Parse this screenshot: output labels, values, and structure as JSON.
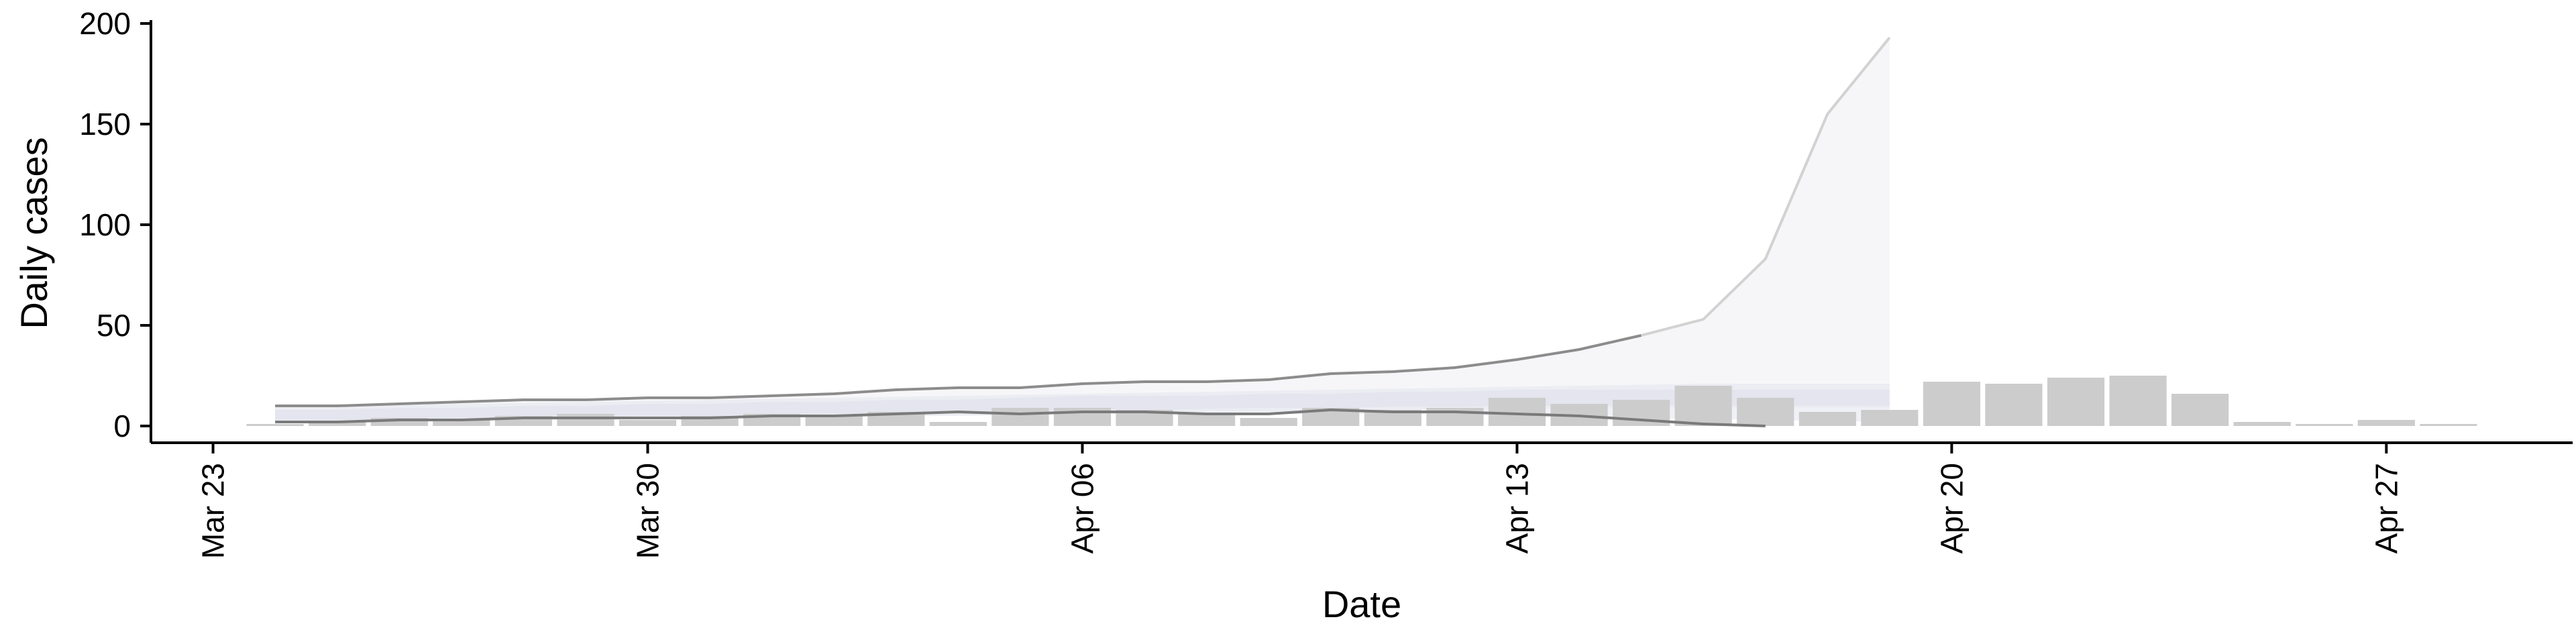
{
  "chart_data": {
    "type": "bar",
    "title": "",
    "xlabel": "Date",
    "ylabel": "Daily cases",
    "ylim": [
      0,
      200
    ],
    "yticks": [
      0,
      50,
      100,
      150,
      200
    ],
    "xlim": [
      "2020-03-22",
      "2020-04-30"
    ],
    "xticks": [
      {
        "date": "2020-03-23",
        "label": "Mar 23"
      },
      {
        "date": "2020-03-30",
        "label": "Mar 30"
      },
      {
        "date": "2020-04-06",
        "label": "Apr 06"
      },
      {
        "date": "2020-04-13",
        "label": "Apr 13"
      },
      {
        "date": "2020-04-20",
        "label": "Apr 20"
      },
      {
        "date": "2020-04-27",
        "label": "Apr 27"
      }
    ],
    "grid": false,
    "legend": "none",
    "bars": {
      "name": "",
      "color": "#cccccc",
      "x": [
        "2020-03-24",
        "2020-03-25",
        "2020-03-26",
        "2020-03-27",
        "2020-03-28",
        "2020-03-29",
        "2020-03-30",
        "2020-03-31",
        "2020-04-01",
        "2020-04-02",
        "2020-04-03",
        "2020-04-04",
        "2020-04-05",
        "2020-04-06",
        "2020-04-07",
        "2020-04-08",
        "2020-04-09",
        "2020-04-10",
        "2020-04-11",
        "2020-04-12",
        "2020-04-13",
        "2020-04-14",
        "2020-04-15",
        "2020-04-16",
        "2020-04-17",
        "2020-04-18",
        "2020-04-19",
        "2020-04-20",
        "2020-04-21",
        "2020-04-22",
        "2020-04-23",
        "2020-04-24",
        "2020-04-25",
        "2020-04-26",
        "2020-04-27",
        "2020-04-28"
      ],
      "values": [
        1,
        2,
        4,
        3,
        5,
        6,
        3,
        5,
        6,
        5,
        7,
        2,
        9,
        9,
        8,
        6,
        4,
        9,
        8,
        9,
        14,
        11,
        13,
        20,
        14,
        7,
        8,
        22,
        21,
        24,
        25,
        16,
        2,
        1,
        3,
        1
      ]
    },
    "shaded_series": [
      {
        "name": "",
        "color": "#b8bfd9",
        "opacity": 0.28,
        "x": [
          "2020-03-24",
          "2020-03-25",
          "2020-03-26",
          "2020-03-27",
          "2020-03-28",
          "2020-03-29",
          "2020-03-30",
          "2020-03-31",
          "2020-04-01",
          "2020-04-02",
          "2020-04-03",
          "2020-04-04",
          "2020-04-05",
          "2020-04-06",
          "2020-04-07",
          "2020-04-08",
          "2020-04-09",
          "2020-04-10",
          "2020-04-11",
          "2020-04-12",
          "2020-04-13",
          "2020-04-14",
          "2020-04-15",
          "2020-04-16",
          "2020-04-17",
          "2020-04-18",
          "2020-04-19"
        ],
        "lower": [
          3,
          3,
          3.5,
          4,
          4,
          4.5,
          5,
          5,
          5.5,
          6,
          6.5,
          7,
          7.5,
          8,
          8,
          8.5,
          9,
          9,
          9.5,
          9.5,
          10,
          10,
          10,
          10,
          10,
          10,
          10
        ],
        "upper": [
          8,
          8,
          9,
          9,
          10,
          10,
          11,
          11,
          12,
          12,
          13,
          13,
          14,
          15,
          15,
          15,
          16,
          16,
          17,
          17,
          18,
          18,
          18,
          18,
          18,
          18,
          18
        ]
      },
      {
        "name": "",
        "color": "#d4d8e8",
        "opacity": 0.35,
        "x": [
          "2020-03-24",
          "2020-03-25",
          "2020-03-26",
          "2020-03-27",
          "2020-03-28",
          "2020-03-29",
          "2020-03-30",
          "2020-03-31",
          "2020-04-01",
          "2020-04-02",
          "2020-04-03",
          "2020-04-04",
          "2020-04-05",
          "2020-04-06",
          "2020-04-07",
          "2020-04-08",
          "2020-04-09",
          "2020-04-10",
          "2020-04-11",
          "2020-04-12",
          "2020-04-13",
          "2020-04-14",
          "2020-04-15",
          "2020-04-16",
          "2020-04-17",
          "2020-04-18",
          "2020-04-19"
        ],
        "lower": [
          2,
          2,
          2.5,
          3,
          3,
          3,
          3.5,
          4,
          4,
          4.5,
          5,
          5,
          5.5,
          6,
          6,
          6,
          6,
          6,
          6,
          5.5,
          5,
          4.5,
          4,
          3.5,
          3,
          2.5,
          2
        ],
        "upper": [
          10,
          10,
          10.5,
          11,
          11.5,
          12,
          12.5,
          13,
          13.5,
          14,
          14.5,
          15,
          15.5,
          16,
          16.5,
          17,
          17.5,
          18,
          18.5,
          19,
          19.5,
          20,
          20.5,
          21,
          21,
          21,
          21
        ]
      },
      {
        "name": "",
        "color": "#e6e6ea",
        "opacity": 0.35,
        "x": [
          "2020-03-24",
          "2020-03-25",
          "2020-03-26",
          "2020-03-27",
          "2020-03-28",
          "2020-03-29",
          "2020-03-30",
          "2020-03-31",
          "2020-04-01",
          "2020-04-02",
          "2020-04-03",
          "2020-04-04",
          "2020-04-05",
          "2020-04-06",
          "2020-04-07",
          "2020-04-08",
          "2020-04-09",
          "2020-04-10",
          "2020-04-11",
          "2020-04-12",
          "2020-04-13",
          "2020-04-14",
          "2020-04-15",
          "2020-04-16",
          "2020-04-17",
          "2020-04-18",
          "2020-04-19"
        ],
        "lower": [
          2,
          2,
          2.5,
          3,
          3,
          3.5,
          4,
          4,
          4.5,
          5,
          5,
          5.5,
          6,
          6,
          6.5,
          7,
          7,
          7.5,
          8,
          8,
          8.5,
          9,
          9,
          9,
          9,
          9,
          9
        ],
        "upper": [
          10,
          10,
          11,
          12,
          13,
          13,
          14,
          14,
          15,
          16,
          18,
          19,
          19,
          21,
          22,
          22,
          23,
          26,
          27,
          29,
          33,
          38,
          45,
          53,
          83,
          155,
          193
        ]
      }
    ],
    "lines": [
      {
        "name": "",
        "color": "#8c8c8c",
        "x": [
          "2020-03-24",
          "2020-03-25",
          "2020-03-26",
          "2020-03-27",
          "2020-03-28",
          "2020-03-29",
          "2020-03-30",
          "2020-03-31",
          "2020-04-01",
          "2020-04-02",
          "2020-04-03",
          "2020-04-04",
          "2020-04-05",
          "2020-04-06",
          "2020-04-07",
          "2020-04-08",
          "2020-04-09",
          "2020-04-10",
          "2020-04-11",
          "2020-04-12",
          "2020-04-13",
          "2020-04-14",
          "2020-04-15"
        ],
        "y": [
          10,
          10,
          11,
          12,
          13,
          13,
          14,
          14,
          15,
          16,
          18,
          19,
          19,
          21,
          22,
          22,
          23,
          26,
          27,
          29,
          33,
          38,
          45
        ]
      },
      {
        "name": "",
        "color": "#d2d2d2",
        "x": [
          "2020-04-15",
          "2020-04-16",
          "2020-04-17",
          "2020-04-18",
          "2020-04-19"
        ],
        "y": [
          45,
          53,
          83,
          155,
          193
        ]
      },
      {
        "name": "",
        "color": "#7a7a7a",
        "x": [
          "2020-03-24",
          "2020-03-25",
          "2020-03-26",
          "2020-03-27",
          "2020-03-28",
          "2020-03-29",
          "2020-03-30",
          "2020-03-31",
          "2020-04-01",
          "2020-04-02",
          "2020-04-03",
          "2020-04-04",
          "2020-04-05",
          "2020-04-06",
          "2020-04-07",
          "2020-04-08",
          "2020-04-09",
          "2020-04-10",
          "2020-04-11",
          "2020-04-12",
          "2020-04-13",
          "2020-04-14",
          "2020-04-15",
          "2020-04-16",
          "2020-04-17"
        ],
        "y": [
          2,
          2,
          3,
          3,
          4,
          4,
          4,
          4,
          5,
          5,
          6,
          7,
          6,
          7,
          7,
          6,
          6,
          8,
          7,
          7,
          6,
          5,
          3,
          1,
          0
        ]
      }
    ]
  }
}
